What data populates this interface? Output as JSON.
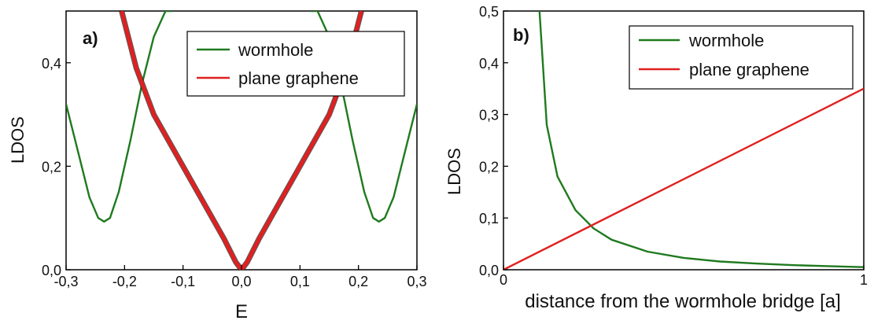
{
  "chart_data": [
    {
      "type": "line",
      "panel_label": "a)",
      "xlabel": "E",
      "ylabel": "LDOS",
      "xlim": [
        -0.3,
        0.3
      ],
      "ylim": [
        0.0,
        0.5
      ],
      "xticks": [
        "-0,3",
        "-0,2",
        "-0,1",
        "0,0",
        "0,1",
        "0,2",
        "0,3"
      ],
      "yticks": [
        "0,0",
        "0,2",
        "0,4"
      ],
      "legend": "top-right",
      "grid": false,
      "series": [
        {
          "name": "wormhole",
          "color": "#1f7a1f",
          "x": [
            -0.3,
            -0.28,
            -0.26,
            -0.245,
            -0.235,
            -0.225,
            -0.21,
            -0.19,
            -0.17,
            -0.15,
            -0.13,
            -0.118
          ],
          "y": [
            0.32,
            0.23,
            0.14,
            0.1,
            0.093,
            0.1,
            0.15,
            0.25,
            0.36,
            0.45,
            0.5,
            0.5
          ],
          "mirror": true
        },
        {
          "name": "plane graphene",
          "color": "#e02020",
          "x": [
            -0.205,
            -0.18,
            -0.15,
            -0.12,
            -0.09,
            -0.06,
            -0.03,
            -0.01,
            0.0,
            0.01,
            0.03,
            0.06,
            0.09,
            0.12,
            0.15,
            0.18,
            0.205
          ],
          "y": [
            0.5,
            0.39,
            0.3,
            0.24,
            0.18,
            0.12,
            0.06,
            0.015,
            0.0,
            0.015,
            0.06,
            0.12,
            0.18,
            0.24,
            0.3,
            0.39,
            0.5
          ]
        }
      ]
    },
    {
      "type": "line",
      "panel_label": "b)",
      "xlabel": "distance from the wormhole bridge [a]",
      "ylabel": "LDOS",
      "xlim": [
        0,
        1
      ],
      "ylim": [
        0.0,
        0.5
      ],
      "xticks": [
        "0",
        "1"
      ],
      "yticks": [
        "0,0",
        "0,1",
        "0,2",
        "0,3",
        "0,4",
        "0,5"
      ],
      "legend": "top-right",
      "grid": false,
      "series": [
        {
          "name": "wormhole",
          "color": "#1f7a1f",
          "x": [
            0.1,
            0.12,
            0.15,
            0.2,
            0.25,
            0.3,
            0.4,
            0.5,
            0.6,
            0.7,
            0.8,
            0.9,
            1.0
          ],
          "y": [
            0.5,
            0.28,
            0.18,
            0.115,
            0.08,
            0.058,
            0.035,
            0.023,
            0.016,
            0.012,
            0.009,
            0.007,
            0.005
          ]
        },
        {
          "name": "plane graphene",
          "color": "#e02020",
          "x": [
            0,
            1
          ],
          "y": [
            0.0,
            0.35
          ]
        }
      ]
    }
  ]
}
